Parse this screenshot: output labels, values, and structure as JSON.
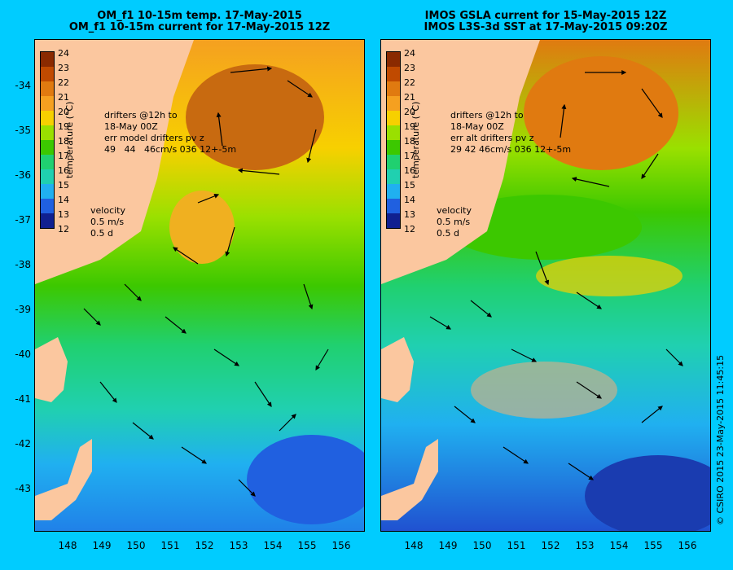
{
  "left_panel": {
    "title_line1": "OM_f1 10-15m temp. 17-May-2015",
    "title_line2": "OM_f1 10-15m current for 17-May-2015 12Z",
    "drifters": [
      "drifters @12h to",
      "18-May 00Z",
      "err model drifters pv z",
      "49   44   46cm/s 036 12+-5m"
    ]
  },
  "right_panel": {
    "title_line1": "IMOS GSLA current for 15-May-2015 12Z",
    "title_line2": "IMOS L3S-3d SST at 17-May-2015 09:20Z",
    "drifters": [
      "drifters @12h to",
      "18-May 00Z",
      "err alt drifters pv z",
      "29 42 46cm/s 036 12+-5m"
    ]
  },
  "colorbar": {
    "labels": [
      "24",
      "23",
      "22",
      "21",
      "20",
      "19",
      "18",
      "17",
      "16",
      "15",
      "14",
      "13",
      "12"
    ],
    "colors": [
      "#8a2a00",
      "#c04a00",
      "#e07a10",
      "#f5a020",
      "#f7d000",
      "#e8f000",
      "#9ae000",
      "#3cc800",
      "#20d070",
      "#20d0b0",
      "#20b0f0",
      "#2060e0",
      "#102090"
    ],
    "title": "temperature (°C)"
  },
  "velocity": {
    "label": "velocity",
    "speed": "0.5 m/s",
    "time": "0.5 d"
  },
  "y_axis": [
    "-34",
    "-35",
    "-36",
    "-37",
    "-38",
    "-39",
    "-40",
    "-41",
    "-42",
    "-43"
  ],
  "x_axis": [
    "148",
    "149",
    "150",
    "151",
    "152",
    "153",
    "154",
    "155",
    "156"
  ],
  "copyright": "© CSIRO 2015   23-May-2015 11:45:15"
}
